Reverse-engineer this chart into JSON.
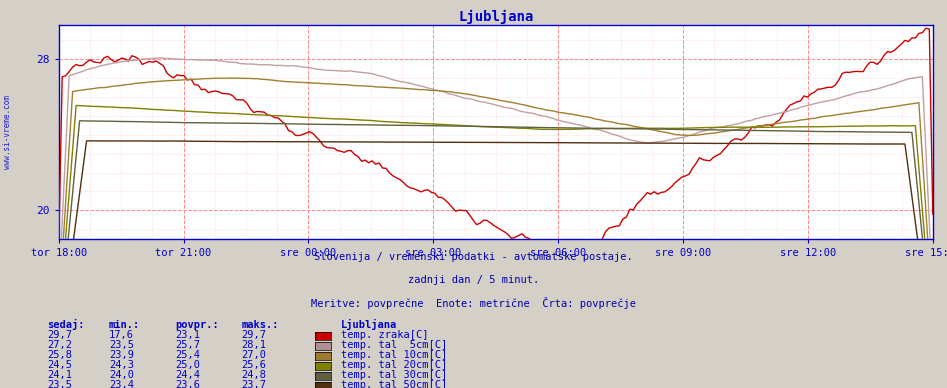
{
  "title": "Ljubljana",
  "subtitle1": "Slovenija / vremenski podatki - avtomatske postaje.",
  "subtitle2": "zadnji dan / 5 minut.",
  "subtitle3": "Meritve: povprečne  Enote: metrične  Črta: povprečje",
  "watermark": "www.si-vreme.com",
  "side_label": "www.si-vreme.com",
  "x_labels": [
    "tor 18:00",
    "tor 21:00",
    "sre 00:00",
    "sre 03:00",
    "sre 06:00",
    "sre 09:00",
    "sre 12:00",
    "sre 15:00"
  ],
  "ylim": [
    18.5,
    29.8
  ],
  "yticks": [
    20,
    28
  ],
  "bg_color": "#d4d0c8",
  "plot_bg_color": "#ffffff",
  "title_color": "#0000cc",
  "text_color": "#0000aa",
  "series_colors": [
    "#cc0000",
    "#c0a0a0",
    "#a08030",
    "#808000",
    "#606040",
    "#503010"
  ],
  "legend_colors": [
    "#cc0000",
    "#b09090",
    "#a07830",
    "#808000",
    "#606040",
    "#503010"
  ],
  "table_headers": [
    "sedaj:",
    "min.:",
    "povpr.:",
    "maks.:"
  ],
  "table_data": [
    [
      29.7,
      17.6,
      23.1,
      29.7
    ],
    [
      27.2,
      23.5,
      25.7,
      28.1
    ],
    [
      25.8,
      23.9,
      25.4,
      27.0
    ],
    [
      24.5,
      24.3,
      25.0,
      25.6
    ],
    [
      24.1,
      24.0,
      24.4,
      24.8
    ],
    [
      23.5,
      23.4,
      23.6,
      23.7
    ]
  ],
  "series_names": [
    "temp. zraka[C]",
    "temp. tal  5cm[C]",
    "temp. tal 10cm[C]",
    "temp. tal 20cm[C]",
    "temp. tal 30cm[C]",
    "temp. tal 50cm[C]"
  ]
}
